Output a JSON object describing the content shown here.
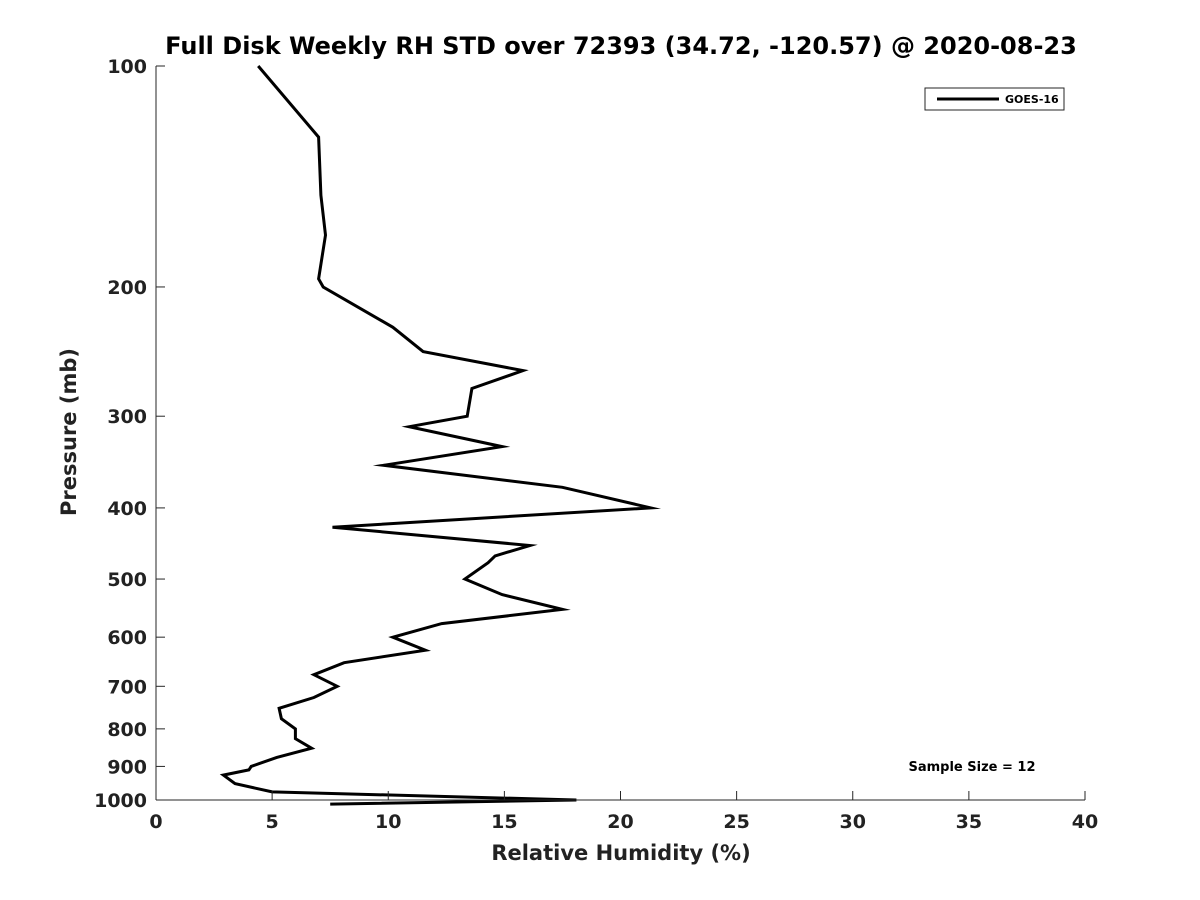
{
  "chart_data": {
    "type": "line",
    "title": "Full Disk Weekly RH STD over 72393 (34.72, -120.57) @ 2020-08-23",
    "xlabel": "Relative Humidity (%)",
    "ylabel": "Pressure (mb)",
    "xlim": [
      0,
      40
    ],
    "ylim": [
      100,
      1000
    ],
    "y_scale": "log",
    "y_reversed": true,
    "xticks": [
      0,
      5,
      10,
      15,
      20,
      25,
      30,
      35,
      40
    ],
    "yticks": [
      100,
      200,
      300,
      400,
      500,
      600,
      700,
      800,
      900,
      1000
    ],
    "grid": false,
    "legend_position": "top-right",
    "line_color": "#000000",
    "annotation": "Sample Size = 12",
    "series": [
      {
        "name": "GOES-16",
        "x": [
          4.4,
          7.0,
          7.1,
          7.3,
          7.0,
          7.2,
          10.2,
          11.5,
          15.8,
          13.6,
          13.4,
          10.9,
          14.9,
          9.8,
          17.5,
          21.3,
          7.6,
          16.1,
          14.6,
          14.3,
          13.3,
          14.9,
          17.5,
          12.3,
          10.2,
          11.6,
          8.1,
          6.8,
          7.8,
          6.8,
          5.3,
          5.4,
          6.0,
          6.0,
          6.7,
          5.2,
          4.1,
          4.0,
          2.9,
          3.4,
          5.0,
          18.1,
          7.5
        ],
        "y": [
          100,
          125,
          150,
          170,
          195,
          200,
          227,
          245,
          260,
          275,
          300,
          310,
          330,
          350,
          375,
          400,
          425,
          450,
          465,
          475,
          500,
          525,
          550,
          575,
          600,
          625,
          650,
          675,
          700,
          725,
          750,
          775,
          800,
          825,
          850,
          875,
          900,
          910,
          925,
          950,
          975,
          1000,
          1013
        ]
      }
    ]
  }
}
